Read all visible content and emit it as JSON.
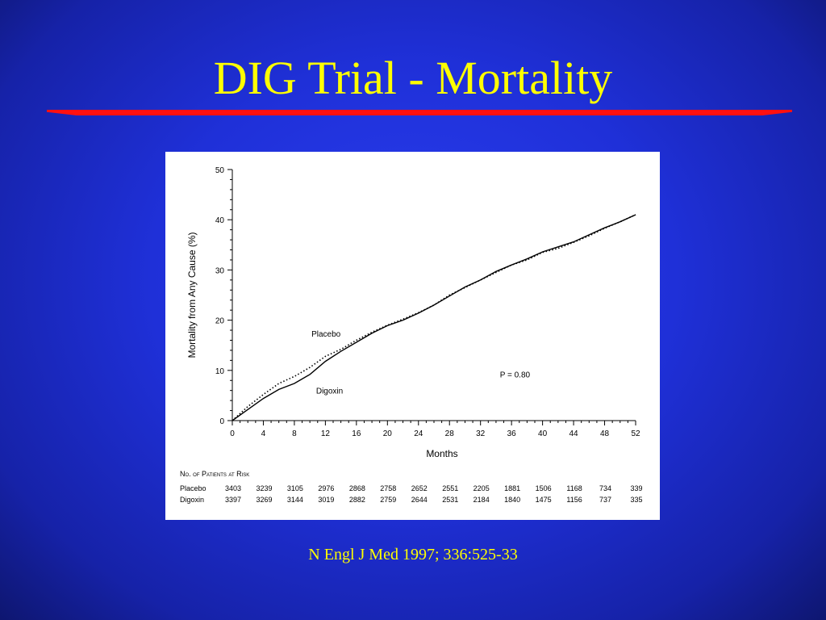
{
  "slide": {
    "title": "DIG Trial - Mortality",
    "citation": "N Engl J Med 1997; 336:525-33"
  },
  "colors": {
    "background": "#1f30d8",
    "title": "#ffff00",
    "rule": "#ff1010",
    "panel": "#ffffff",
    "ink": "#000000"
  },
  "chart_data": {
    "type": "line",
    "xlabel": "Months",
    "ylabel": "Mortality from Any Cause (%)",
    "xlim": [
      0,
      52
    ],
    "ylim": [
      0,
      50
    ],
    "xticks": [
      0,
      4,
      8,
      12,
      16,
      20,
      24,
      28,
      32,
      36,
      40,
      44,
      48,
      52
    ],
    "yticks": [
      0,
      10,
      20,
      30,
      40,
      50
    ],
    "grid": false,
    "annotations": {
      "p_value": "P = 0.80"
    },
    "series": [
      {
        "name": "Placebo",
        "style": "dotted",
        "x": [
          0,
          2,
          4,
          6,
          8,
          10,
          12,
          14,
          16,
          18,
          20,
          22,
          24,
          26,
          28,
          30,
          32,
          34,
          36,
          38,
          40,
          42,
          44,
          46,
          48,
          50,
          52
        ],
        "y": [
          0,
          2.8,
          5.2,
          7.4,
          8.8,
          10.6,
          12.8,
          14.2,
          16.0,
          17.6,
          19.0,
          20.2,
          21.5,
          23.0,
          25.0,
          26.5,
          28.0,
          29.5,
          31.0,
          32.0,
          33.5,
          34.3,
          35.5,
          36.8,
          38.3,
          39.6,
          41.0
        ]
      },
      {
        "name": "Digoxin",
        "style": "solid",
        "x": [
          0,
          2,
          4,
          6,
          8,
          10,
          12,
          14,
          16,
          18,
          20,
          22,
          24,
          26,
          28,
          30,
          32,
          34,
          36,
          38,
          40,
          42,
          44,
          46,
          48,
          50,
          52
        ],
        "y": [
          0,
          2.2,
          4.4,
          6.2,
          7.4,
          9.2,
          11.8,
          13.8,
          15.6,
          17.4,
          18.9,
          20.0,
          21.4,
          23.0,
          24.8,
          26.6,
          28.0,
          29.7,
          31.0,
          32.2,
          33.6,
          34.6,
          35.6,
          37.0,
          38.4,
          39.6,
          41.0
        ]
      }
    ],
    "at_risk": {
      "header": "No. of Patients at Risk",
      "rows": [
        {
          "name": "Placebo",
          "values": [
            "3403",
            "3239",
            "3105",
            "2976",
            "2868",
            "2758",
            "2652",
            "2551",
            "2205",
            "1881",
            "1506",
            "1168",
            "734",
            "339"
          ]
        },
        {
          "name": "Digoxin",
          "values": [
            "3397",
            "3269",
            "3144",
            "3019",
            "2882",
            "2759",
            "2644",
            "2531",
            "2184",
            "1840",
            "1475",
            "1156",
            "737",
            "335"
          ]
        }
      ]
    }
  }
}
